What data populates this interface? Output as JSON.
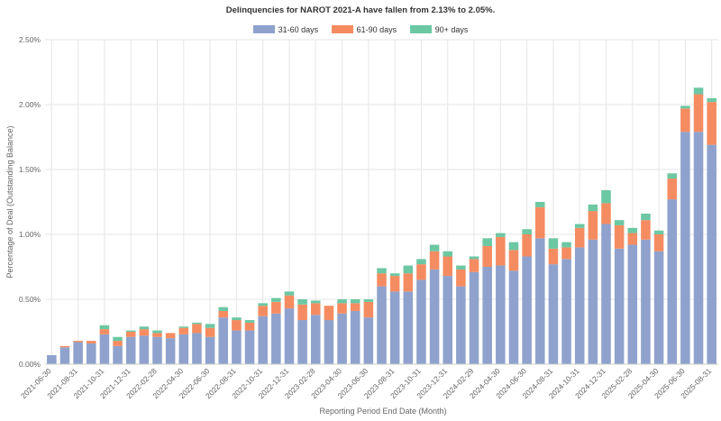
{
  "chart_data": {
    "type": "bar",
    "stacked": true,
    "title": "Delinquencies for NAROT 2021-A have fallen from 2.13% to 2.05%.",
    "xlabel": "Reporting Period End Date (Month)",
    "ylabel": "Percentage of Deal (Outstanding Balance)",
    "ylim": [
      0,
      2.5
    ],
    "yticks": [
      "0.00%",
      "0.50%",
      "1.00%",
      "1.50%",
      "2.00%",
      "2.50%"
    ],
    "grid": true,
    "legend_position": "top-center",
    "categories": [
      "2021-06-30",
      "2021-07-31",
      "2021-08-31",
      "2021-09-30",
      "2021-10-31",
      "2021-11-30",
      "2021-12-31",
      "2022-01-31",
      "2022-02-28",
      "2022-03-31",
      "2022-04-30",
      "2022-05-31",
      "2022-06-30",
      "2022-07-31",
      "2022-08-31",
      "2022-09-30",
      "2022-10-31",
      "2022-11-30",
      "2022-12-31",
      "2023-01-31",
      "2023-02-28",
      "2023-03-31",
      "2023-04-30",
      "2023-05-31",
      "2023-06-30",
      "2023-07-31",
      "2023-08-31",
      "2023-09-30",
      "2023-10-31",
      "2023-11-30",
      "2023-12-31",
      "2024-01-31",
      "2024-02-29",
      "2024-03-31",
      "2024-04-30",
      "2024-05-31",
      "2024-06-30",
      "2024-07-31",
      "2024-08-31",
      "2024-09-30",
      "2024-10-31",
      "2024-11-30",
      "2024-12-31",
      "2025-01-31",
      "2025-02-28",
      "2025-03-31",
      "2025-04-30",
      "2025-05-31",
      "2025-06-30",
      "2025-07-31",
      "2025-08-31"
    ],
    "tick_labels": [
      "2021-06-30",
      "2021-08-31",
      "2021-10-31",
      "2021-12-31",
      "2022-02-28",
      "2022-04-30",
      "2022-06-30",
      "2022-08-31",
      "2022-10-31",
      "2022-12-31",
      "2023-02-28",
      "2023-04-30",
      "2023-06-30",
      "2023-08-31",
      "2023-10-31",
      "2023-12-31",
      "2024-02-29",
      "2024-04-30",
      "2024-06-30",
      "2024-08-31",
      "2024-10-31",
      "2024-12-31",
      "2025-02-28",
      "2025-04-30",
      "2025-06-30",
      "2025-08-31"
    ],
    "series": [
      {
        "name": "31-60 days",
        "color": "#8fa2cd",
        "values": [
          0.07,
          0.13,
          0.17,
          0.16,
          0.23,
          0.14,
          0.21,
          0.22,
          0.21,
          0.2,
          0.23,
          0.24,
          0.21,
          0.36,
          0.26,
          0.26,
          0.37,
          0.39,
          0.43,
          0.34,
          0.38,
          0.34,
          0.39,
          0.41,
          0.36,
          0.6,
          0.56,
          0.56,
          0.65,
          0.73,
          0.68,
          0.6,
          0.71,
          0.75,
          0.76,
          0.72,
          0.83,
          0.97,
          0.77,
          0.81,
          0.9,
          0.96,
          1.08,
          0.89,
          0.92,
          0.96,
          0.87,
          1.27,
          1.79,
          1.79,
          1.69
        ]
      },
      {
        "name": "61-90 days",
        "color": "#f58c61",
        "values": [
          0.0,
          0.01,
          0.01,
          0.02,
          0.04,
          0.04,
          0.04,
          0.05,
          0.03,
          0.04,
          0.05,
          0.07,
          0.07,
          0.05,
          0.08,
          0.06,
          0.08,
          0.09,
          0.1,
          0.12,
          0.09,
          0.11,
          0.08,
          0.06,
          0.12,
          0.1,
          0.12,
          0.14,
          0.12,
          0.14,
          0.15,
          0.13,
          0.1,
          0.16,
          0.22,
          0.16,
          0.17,
          0.24,
          0.12,
          0.09,
          0.15,
          0.22,
          0.16,
          0.18,
          0.09,
          0.15,
          0.13,
          0.16,
          0.18,
          0.29,
          0.33
        ]
      },
      {
        "name": "90+ days",
        "color": "#6cc7a3",
        "values": [
          0.0,
          0.0,
          0.0,
          0.0,
          0.03,
          0.03,
          0.01,
          0.02,
          0.02,
          0.0,
          0.01,
          0.01,
          0.03,
          0.03,
          0.02,
          0.02,
          0.02,
          0.03,
          0.03,
          0.04,
          0.02,
          0.0,
          0.03,
          0.03,
          0.02,
          0.04,
          0.02,
          0.06,
          0.04,
          0.05,
          0.04,
          0.03,
          0.02,
          0.06,
          0.03,
          0.06,
          0.04,
          0.04,
          0.08,
          0.04,
          0.03,
          0.05,
          0.1,
          0.04,
          0.04,
          0.05,
          0.03,
          0.04,
          0.02,
          0.05,
          0.03
        ]
      }
    ]
  }
}
